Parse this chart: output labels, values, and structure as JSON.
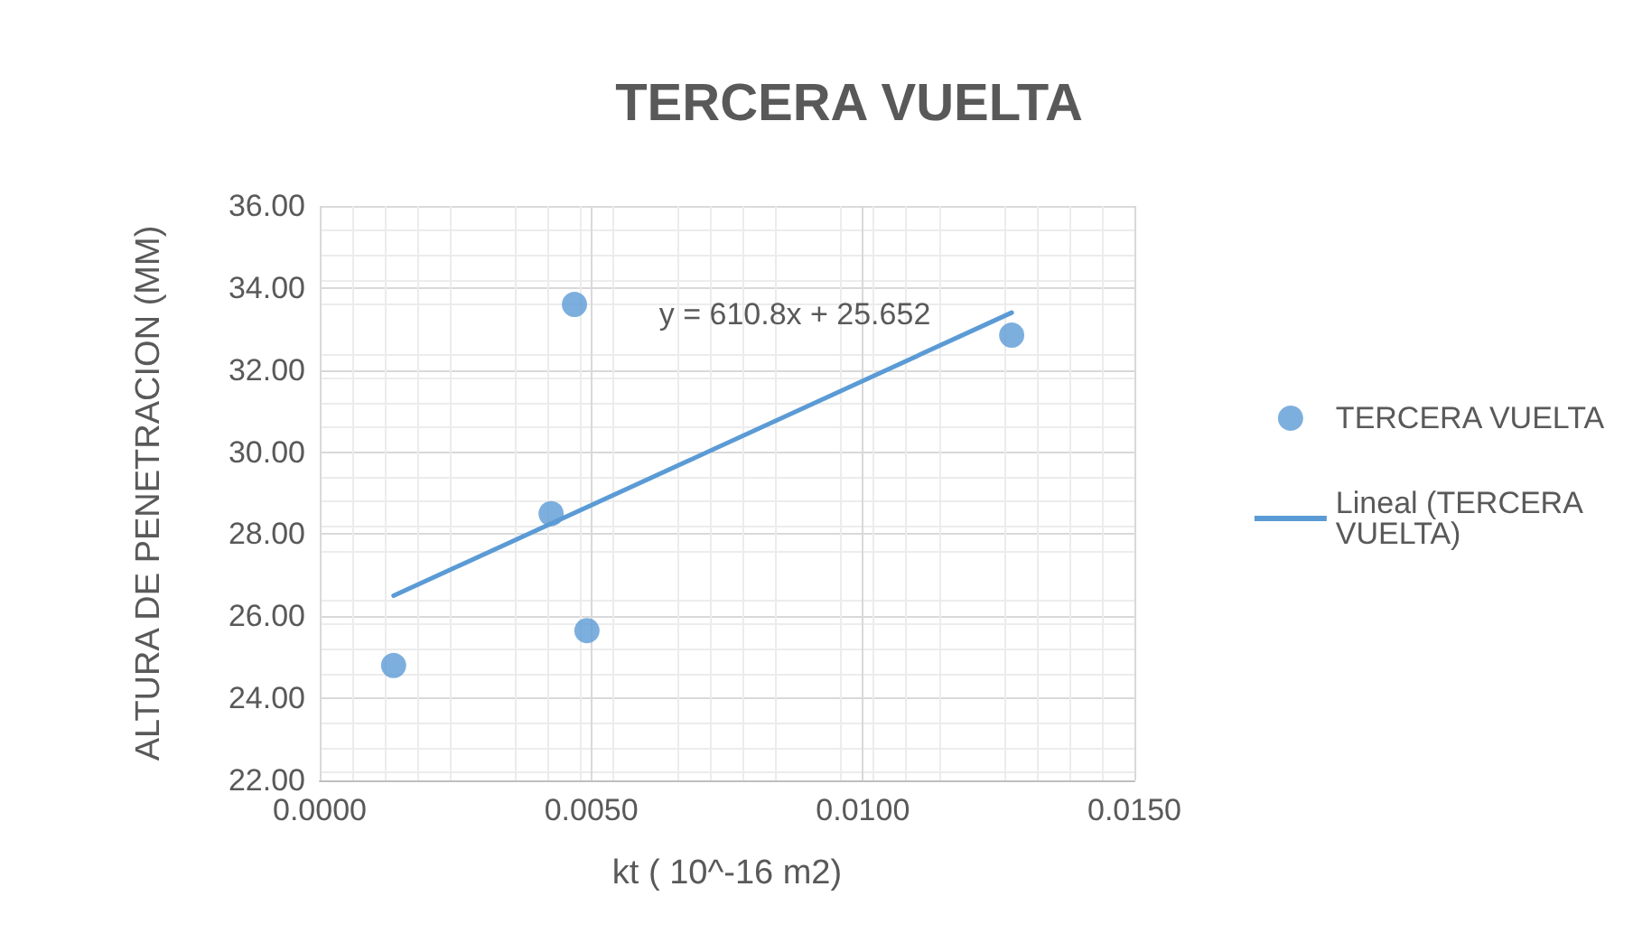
{
  "chart_data": {
    "type": "scatter",
    "title": "TERCERA VUELTA",
    "xlabel": "kt ( 10^-16 m2)",
    "ylabel": "ALTURA DE PENETRACION (MM)",
    "series": [
      {
        "name": "TERCERA VUELTA",
        "color": "#5b9bd5",
        "x": [
          0.00136,
          0.00426,
          0.00469,
          0.00492,
          0.01274
        ],
        "values": [
          24.8,
          28.5,
          33.6,
          25.65,
          32.85
        ],
        "marker": "circle"
      },
      {
        "name": "Lineal (TERCERA VUELTA)",
        "type": "line",
        "color": "#5b9bd5",
        "x": [
          0.00136,
          0.01274
        ],
        "values": [
          26.5,
          33.4
        ],
        "marker": "none",
        "line_style": "solid"
      }
    ],
    "annotations": [
      "y = 610.8x + 25.652"
    ],
    "xlim": [
      0,
      0.015
    ],
    "xticks": [
      {
        "value": 0,
        "label": "0.0000"
      },
      {
        "value": 0.005,
        "label": "0.0050"
      },
      {
        "value": 0.01,
        "label": "0.0100"
      },
      {
        "value": 0.015,
        "label": "0.0150"
      }
    ],
    "ylim": [
      22,
      36
    ],
    "yticks": [
      {
        "value": 22,
        "label": "22.00"
      },
      {
        "value": 24,
        "label": "24.00"
      },
      {
        "value": 26,
        "label": "26.00"
      },
      {
        "value": 28,
        "label": "28.00"
      },
      {
        "value": 30,
        "label": "30.00"
      },
      {
        "value": 32,
        "label": "32.00"
      },
      {
        "value": 34,
        "label": "34.00"
      },
      {
        "value": 36,
        "label": "36.00"
      }
    ],
    "grid": true,
    "legend": "right"
  }
}
